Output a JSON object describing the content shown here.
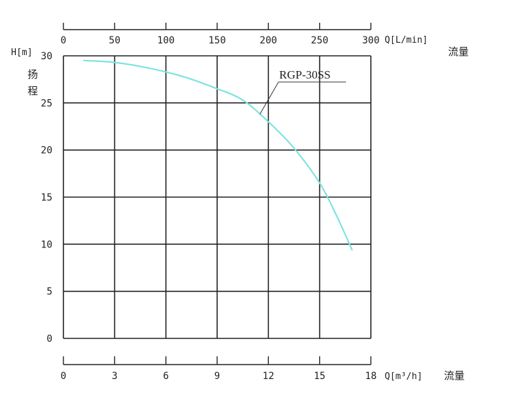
{
  "chart_data": {
    "type": "line",
    "title": "",
    "top_axis": {
      "label": "Q[L/min]",
      "sublabel": "流量",
      "range": [
        0,
        300
      ],
      "ticks": [
        0,
        50,
        100,
        150,
        200,
        250,
        300
      ]
    },
    "bottom_axis": {
      "label": "Q[m³/h]",
      "sublabel": "流量",
      "range": [
        0,
        18
      ],
      "ticks": [
        0,
        3,
        6,
        9,
        12,
        15,
        18
      ]
    },
    "y_axis": {
      "label": "H[m]",
      "sublabel_lines": [
        "扬",
        "程"
      ],
      "range": [
        0,
        30
      ],
      "ticks": [
        0,
        5,
        10,
        15,
        20,
        25,
        30
      ]
    },
    "grid": true,
    "series": [
      {
        "name": "RGP-30SS",
        "color": "#7fe3e0",
        "x_unit": "m³/h",
        "x": [
          1.2,
          3,
          5,
          7,
          9,
          10.5,
          12,
          13.5,
          15,
          16,
          16.9
        ],
        "y": [
          29.5,
          29.3,
          28.7,
          27.8,
          26.5,
          25.3,
          23.0,
          20.2,
          16.5,
          13.0,
          9.4
        ]
      }
    ],
    "annotation": {
      "text": "RGP-30SS",
      "points_to_x": 11.5,
      "points_to_y": 23.8
    }
  }
}
